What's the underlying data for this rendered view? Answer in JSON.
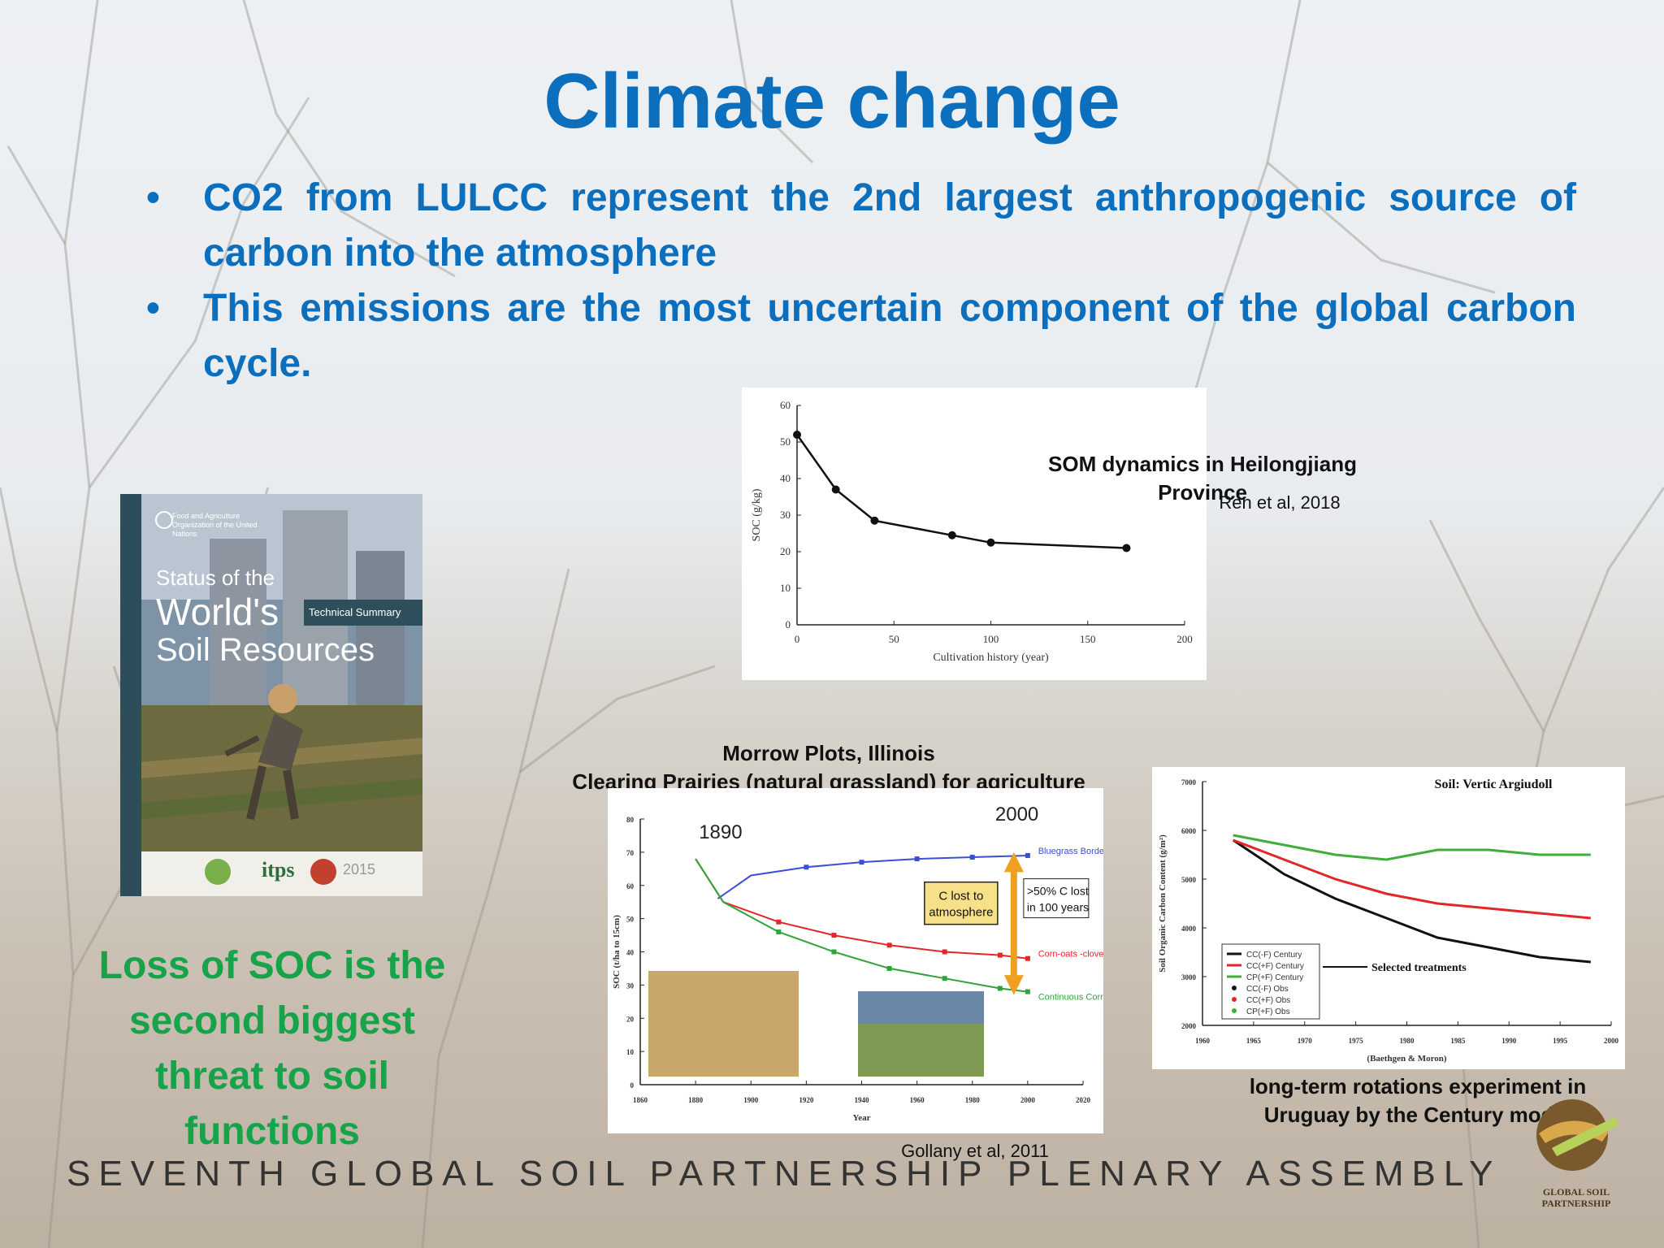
{
  "title": "Climate change",
  "bullets": [
    "CO2 from LULCC represent the 2nd largest anthropogenic source of carbon into the atmosphere",
    "This emissions are the most uncertain component of the global carbon cycle."
  ],
  "colors": {
    "title_blue": "#0b6fbe",
    "soc_green": "#17a34a",
    "footer_gray": "#333333"
  },
  "book": {
    "publisher": "Food and Agriculture Organization of the United Nations",
    "line1": "Status of the",
    "line2": "World's",
    "line3": "Soil Resources",
    "badge": "Technical Summary",
    "logo": "itps",
    "year": "2015"
  },
  "soc_message": "Loss of SOC is the second biggest threat to soil functions",
  "footer": {
    "assembly": "SEVENTH GLOBAL SOIL PARTNERSHIP PLENARY ASSEMBLY",
    "logo_text": "GLOBAL SOIL PARTNERSHIP"
  },
  "chart_data": [
    {
      "type": "line",
      "caption": "SOM dynamics in Heilongjiang Province",
      "source": "Ren et al, 2018",
      "xlabel": "Cultivation history (year)",
      "ylabel": "SOC (g/kg)",
      "xlim": [
        0,
        200
      ],
      "ylim": [
        0,
        60
      ],
      "xticks": [
        0,
        50,
        100,
        150,
        200
      ],
      "yticks": [
        0,
        10,
        20,
        30,
        40,
        50,
        60
      ],
      "x": [
        0,
        20,
        40,
        80,
        100,
        170
      ],
      "y": [
        52,
        37,
        28.5,
        24.5,
        22.5,
        21
      ]
    },
    {
      "type": "line",
      "title_lines": [
        "Morrow Plots, Illinois",
        "Clearing Prairies (natural grassland) for agriculture"
      ],
      "source": "Gollany et al, 2011",
      "xlabel": "Year",
      "ylabel": "SOC (t/ha to 15cm)",
      "xlim": [
        1860,
        2020
      ],
      "ylim": [
        0,
        80
      ],
      "xticks": [
        1860,
        1880,
        1900,
        1920,
        1940,
        1960,
        1980,
        2000,
        2020
      ],
      "yticks": [
        0,
        10,
        20,
        30,
        40,
        50,
        60,
        70,
        80
      ],
      "annotations": {
        "start_year": "1890",
        "end_year": "2000",
        "c_lost": "C lost to atmosphere",
        "pct_lost": ">50% C lost in 100 years"
      },
      "series": [
        {
          "name": "Bluegrass Border",
          "color": "#3b4fd6",
          "x": [
            1888,
            1900,
            1920,
            1940,
            1960,
            1980,
            2000
          ],
          "y": [
            56,
            63,
            65.5,
            67,
            68,
            68.5,
            69
          ]
        },
        {
          "name": "Corn-oats -clover",
          "color": "#e3262a",
          "x": [
            1880,
            1890,
            1910,
            1930,
            1950,
            1970,
            1990,
            2000
          ],
          "y": [
            68,
            55,
            49,
            45,
            42,
            40,
            39,
            38
          ]
        },
        {
          "name": "Continuous Corn",
          "color": "#2ea43a",
          "x": [
            1880,
            1890,
            1910,
            1930,
            1950,
            1970,
            1990,
            2000
          ],
          "y": [
            68,
            55,
            46,
            40,
            35,
            32,
            29,
            28
          ]
        }
      ]
    },
    {
      "type": "line",
      "caption_lines": [
        "long-term rotations experiment in",
        "Uruguay by the Century model"
      ],
      "panel_title": "Soil: Vertic Argiudoll",
      "xlabel": "(Baethgen & Moron)",
      "ylabel": "Soil Organic Carbon Content (g/m²)",
      "xlim": [
        1960,
        2000
      ],
      "ylim": [
        2000,
        7000
      ],
      "xticks": [
        1960,
        1965,
        1970,
        1975,
        1980,
        1985,
        1990,
        1995,
        2000
      ],
      "yticks": [
        2000,
        3000,
        4000,
        5000,
        6000,
        7000
      ],
      "arrow_label": "Selected treatments",
      "series": [
        {
          "name": "CC(-F) Century",
          "color": "#111111",
          "x": [
            1963,
            1968,
            1973,
            1978,
            1983,
            1988,
            1993,
            1998
          ],
          "y": [
            5800,
            5100,
            4600,
            4200,
            3800,
            3600,
            3400,
            3300
          ]
        },
        {
          "name": "CC(+F) Century",
          "color": "#e3262a",
          "x": [
            1963,
            1968,
            1973,
            1978,
            1983,
            1988,
            1993,
            1998
          ],
          "y": [
            5800,
            5400,
            5000,
            4700,
            4500,
            4400,
            4300,
            4200
          ]
        },
        {
          "name": "CP(+F) Century",
          "color": "#3fae3a",
          "x": [
            1963,
            1968,
            1973,
            1978,
            1983,
            1988,
            1993,
            1998
          ],
          "y": [
            5900,
            5700,
            5500,
            5400,
            5600,
            5600,
            5500,
            5500
          ]
        },
        {
          "name": "CC(-F) Obs",
          "color": "#111111",
          "x": [],
          "y": []
        },
        {
          "name": "CC(+F) Obs",
          "color": "#e3262a",
          "x": [],
          "y": []
        },
        {
          "name": "CP(+F) Obs",
          "color": "#3fae3a",
          "x": [],
          "y": []
        }
      ]
    }
  ]
}
